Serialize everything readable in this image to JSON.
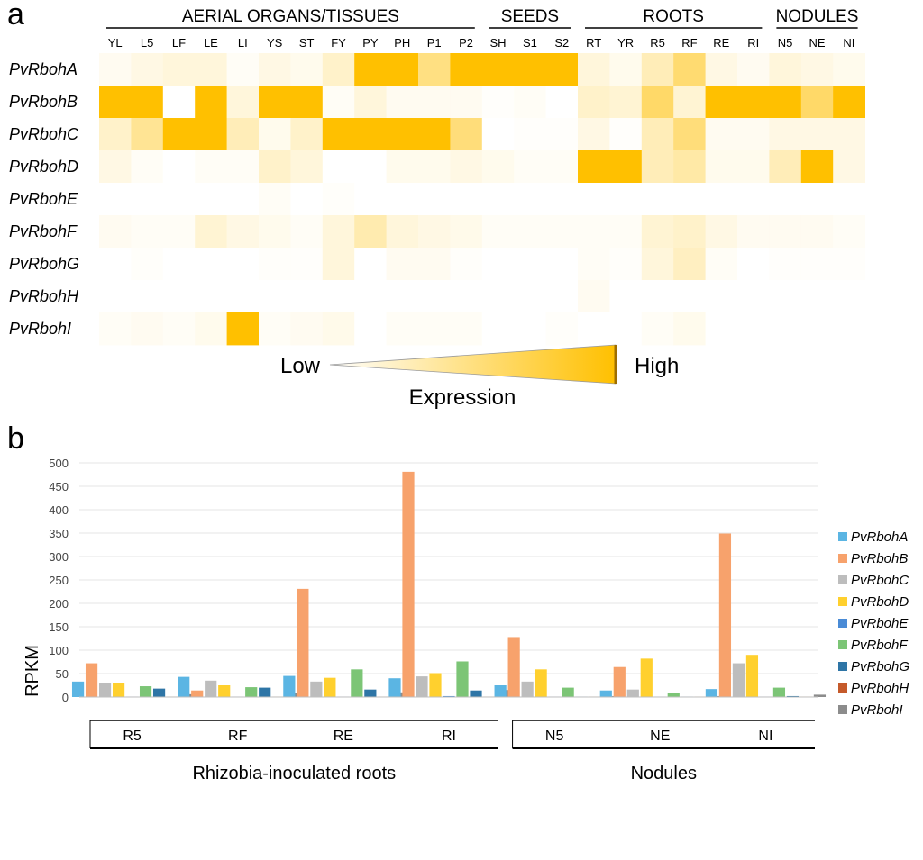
{
  "panel_a_label": "a",
  "panel_b_label": "b",
  "colors": {
    "high": "#FFC000",
    "low": "#FFFFFF",
    "axis": "#000000",
    "grid": "#E6E6E6"
  },
  "chart_data": [
    {
      "type": "heatmap",
      "groups": [
        {
          "label": "AERIAL ORGANS/TISSUES",
          "columns": [
            "YL",
            "L5",
            "LF",
            "LE",
            "LI",
            "YS",
            "ST",
            "FY",
            "PY",
            "PH",
            "P1",
            "P2"
          ]
        },
        {
          "label": "SEEDS",
          "columns": [
            "SH",
            "S1",
            "S2"
          ]
        },
        {
          "label": "ROOTS",
          "columns": [
            "RT",
            "YR",
            "R5",
            "RF",
            "RE",
            "RI"
          ]
        },
        {
          "label": "NODULES",
          "columns": [
            "N5",
            "NE",
            "NI"
          ]
        }
      ],
      "columns": [
        "YL",
        "L5",
        "LF",
        "LE",
        "LI",
        "YS",
        "ST",
        "FY",
        "PY",
        "PH",
        "P1",
        "P2",
        "SH",
        "S1",
        "S2",
        "RT",
        "YR",
        "R5",
        "RF",
        "RE",
        "RI",
        "N5",
        "NE",
        "NI"
      ],
      "rows": [
        "PvRbohA",
        "PvRbohB",
        "PvRbohC",
        "PvRbohD",
        "PvRbohE",
        "PvRbohF",
        "PvRbohG",
        "PvRbohH",
        "PvRbohI"
      ],
      "values": [
        [
          0.08,
          0.15,
          0.2,
          0.2,
          0.05,
          0.15,
          0.1,
          0.3,
          0.95,
          0.95,
          0.7,
          0.95,
          0.95,
          0.95,
          0.95,
          0.2,
          0.1,
          0.4,
          0.8,
          0.15,
          0.08,
          0.2,
          0.15,
          0.1
        ],
        [
          0.95,
          0.95,
          0.0,
          0.95,
          0.2,
          0.95,
          0.95,
          0.05,
          0.2,
          0.08,
          0.08,
          0.08,
          0.02,
          0.05,
          0.0,
          0.3,
          0.25,
          0.85,
          0.25,
          0.95,
          0.95,
          0.9,
          0.85,
          0.95
        ],
        [
          0.3,
          0.6,
          0.95,
          0.95,
          0.4,
          0.1,
          0.3,
          0.95,
          0.95,
          0.95,
          0.95,
          0.75,
          0.0,
          0.02,
          0.02,
          0.15,
          0.02,
          0.4,
          0.75,
          0.08,
          0.08,
          0.15,
          0.15,
          0.15
        ],
        [
          0.15,
          0.05,
          0.0,
          0.05,
          0.05,
          0.3,
          0.2,
          0.0,
          0.0,
          0.1,
          0.1,
          0.15,
          0.1,
          0.05,
          0.05,
          0.95,
          0.95,
          0.4,
          0.5,
          0.1,
          0.1,
          0.4,
          0.95,
          0.15
        ],
        [
          0.0,
          0.0,
          0.0,
          0.0,
          0.0,
          0.05,
          0.0,
          0.03,
          0.0,
          0.0,
          0.0,
          0.0,
          0.0,
          0.0,
          0.0,
          0.0,
          0.0,
          0.0,
          0.0,
          0.0,
          0.0,
          0.0,
          0.0,
          0.0
        ],
        [
          0.08,
          0.05,
          0.05,
          0.25,
          0.15,
          0.1,
          0.05,
          0.2,
          0.45,
          0.2,
          0.15,
          0.12,
          0.05,
          0.05,
          0.05,
          0.05,
          0.05,
          0.25,
          0.3,
          0.15,
          0.08,
          0.08,
          0.08,
          0.05
        ],
        [
          0.0,
          0.03,
          0.0,
          0.0,
          0.0,
          0.03,
          0.02,
          0.2,
          0.0,
          0.08,
          0.08,
          0.03,
          0.0,
          0.0,
          0.0,
          0.05,
          0.03,
          0.2,
          0.35,
          0.05,
          0.0,
          0.02,
          0.02,
          0.02
        ],
        [
          0.0,
          0.0,
          0.0,
          0.0,
          0.0,
          0.0,
          0.0,
          0.0,
          0.0,
          0.0,
          0.0,
          0.0,
          0.0,
          0.0,
          0.0,
          0.08,
          0.0,
          0.0,
          0.0,
          0.0,
          0.0,
          0.0,
          0.0,
          0.0
        ],
        [
          0.05,
          0.08,
          0.05,
          0.1,
          0.98,
          0.05,
          0.08,
          0.12,
          0.0,
          0.05,
          0.05,
          0.05,
          0.0,
          0.0,
          0.03,
          0.0,
          0.0,
          0.05,
          0.1,
          0.0,
          0.0,
          0.0,
          0.0,
          0.0
        ]
      ],
      "scale_low_label": "Low",
      "scale_high_label": "High",
      "scale_title": "Expression"
    },
    {
      "type": "bar",
      "ylabel": "RPKM",
      "ylim": [
        0,
        500
      ],
      "yticks": [
        0,
        50,
        100,
        150,
        200,
        250,
        300,
        350,
        400,
        450,
        500
      ],
      "grid": true,
      "legend_position": "right",
      "categories": [
        "R5",
        "RF",
        "RE",
        "RI",
        "N5",
        "NE",
        "NI"
      ],
      "category_groups": [
        {
          "label": "Rhizobia-inoculated roots",
          "categories": [
            "R5",
            "RF",
            "RE",
            "RI"
          ]
        },
        {
          "label": "Nodules",
          "categories": [
            "N5",
            "NE",
            "NI"
          ]
        }
      ],
      "series": [
        {
          "name": "PvRbohA",
          "color": "#5BB5E3",
          "values": [
            33,
            43,
            45,
            40,
            25,
            14,
            17
          ]
        },
        {
          "name": "PvRbohB",
          "color": "#F7A26C",
          "values": [
            72,
            14,
            231,
            481,
            128,
            64,
            349
          ]
        },
        {
          "name": "PvRbohC",
          "color": "#BDBDBD",
          "values": [
            30,
            35,
            33,
            44,
            33,
            16,
            72
          ]
        },
        {
          "name": "PvRbohD",
          "color": "#FFD02E",
          "values": [
            30,
            25,
            41,
            51,
            59,
            82,
            90
          ]
        },
        {
          "name": "PvRbohE",
          "color": "#4A8BD6",
          "values": [
            1,
            1,
            1,
            2,
            1,
            1,
            1
          ]
        },
        {
          "name": "PvRbohF",
          "color": "#7CC576",
          "values": [
            23,
            21,
            59,
            76,
            20,
            9,
            20
          ]
        },
        {
          "name": "PvRbohG",
          "color": "#2E75A6",
          "values": [
            18,
            20,
            16,
            14,
            1,
            1,
            2
          ]
        },
        {
          "name": "PvRbohH",
          "color": "#C55A2B",
          "values": [
            1,
            1,
            1,
            1,
            1,
            1,
            1
          ]
        },
        {
          "name": "PvRbohI",
          "color": "#8C8C8C",
          "values": [
            6,
            9,
            10,
            15,
            2,
            2,
            5
          ]
        }
      ]
    }
  ]
}
